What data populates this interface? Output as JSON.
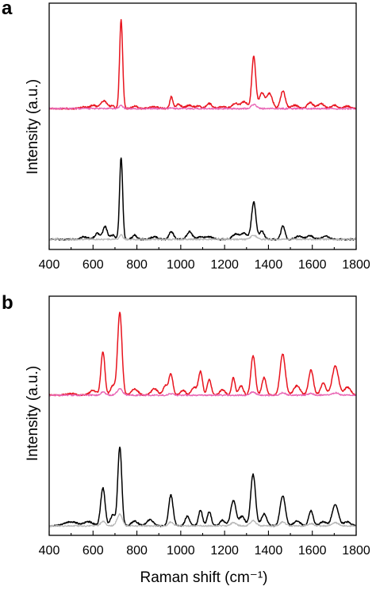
{
  "figure": {
    "panels": [
      {
        "label": "a",
        "ylabel": "Intensity (a.u.)"
      },
      {
        "label": "b",
        "ylabel": "Intensity (a.u.)"
      }
    ],
    "xlabel": "Raman shift (cm⁻¹)",
    "colors": {
      "red": "#e8141e",
      "pink": "#e864b4",
      "black": "#000000",
      "gray": "#b8b8b8"
    }
  },
  "chart_data": [
    {
      "type": "line",
      "panel": "a",
      "xlabel": "",
      "ylabel": "Intensity (a.u.)",
      "xlim": [
        400,
        1800
      ],
      "xticks": [
        400,
        600,
        800,
        1000,
        1200,
        1400,
        1600,
        1800
      ],
      "yticks": [],
      "y_unit": "a.u. (unlabeled, stacked traces)",
      "series": [
        {
          "color": "#e8141e",
          "baseline": 1.55,
          "peaks": [
            [
              560,
              0.02,
              15
            ],
            [
              600,
              0.04,
              12
            ],
            [
              650,
              0.09,
              16
            ],
            [
              690,
              0.03,
              8
            ],
            [
              728,
              1.05,
              7
            ],
            [
              790,
              0.03,
              12
            ],
            [
              880,
              0.02,
              20
            ],
            [
              957,
              0.14,
              7
            ],
            [
              990,
              0.05,
              12
            ],
            [
              1040,
              0.04,
              15
            ],
            [
              1080,
              0.03,
              12
            ],
            [
              1130,
              0.06,
              12
            ],
            [
              1190,
              0.02,
              20
            ],
            [
              1250,
              0.06,
              15
            ],
            [
              1290,
              0.08,
              14
            ],
            [
              1333,
              0.62,
              9
            ],
            [
              1370,
              0.18,
              12
            ],
            [
              1405,
              0.18,
              13
            ],
            [
              1466,
              0.21,
              11
            ],
            [
              1520,
              0.04,
              15
            ],
            [
              1590,
              0.07,
              14
            ],
            [
              1640,
              0.06,
              14
            ],
            [
              1700,
              0.04,
              15
            ],
            [
              1760,
              0.03,
              15
            ]
          ]
        },
        {
          "color": "#e864b4",
          "baseline": 1.55,
          "peaks": [
            [
              728,
              0.04,
              8
            ],
            [
              957,
              0.01,
              8
            ],
            [
              1333,
              0.05,
              12
            ]
          ]
        },
        {
          "color": "#000000",
          "baseline": 0.0,
          "peaks": [
            [
              560,
              0.03,
              15
            ],
            [
              620,
              0.07,
              12
            ],
            [
              655,
              0.15,
              10
            ],
            [
              690,
              0.05,
              10
            ],
            [
              728,
              0.97,
              7
            ],
            [
              790,
              0.05,
              10
            ],
            [
              880,
              0.03,
              15
            ],
            [
              957,
              0.09,
              10
            ],
            [
              1040,
              0.09,
              12
            ],
            [
              1090,
              0.03,
              15
            ],
            [
              1130,
              0.03,
              15
            ],
            [
              1250,
              0.06,
              15
            ],
            [
              1290,
              0.07,
              15
            ],
            [
              1333,
              0.44,
              10
            ],
            [
              1370,
              0.1,
              10
            ],
            [
              1466,
              0.16,
              9
            ],
            [
              1540,
              0.04,
              15
            ],
            [
              1590,
              0.04,
              15
            ],
            [
              1660,
              0.04,
              15
            ]
          ]
        },
        {
          "color": "#b8b8b8",
          "baseline": 0.0,
          "peaks": [
            [
              728,
              0.05,
              8
            ],
            [
              1333,
              0.05,
              12
            ]
          ]
        }
      ]
    },
    {
      "type": "line",
      "panel": "b",
      "xlabel": "Raman shift (cm⁻¹)",
      "ylabel": "Intensity (a.u.)",
      "xlim": [
        400,
        1800
      ],
      "xticks": [
        400,
        600,
        800,
        1000,
        1200,
        1400,
        1600,
        1800
      ],
      "yticks": [],
      "y_unit": "a.u. (unlabeled, stacked traces)",
      "series": [
        {
          "color": "#e8141e",
          "baseline": 1.65,
          "peaks": [
            [
              500,
              0.02,
              20
            ],
            [
              600,
              0.06,
              15
            ],
            [
              645,
              0.55,
              9
            ],
            [
              690,
              0.12,
              10
            ],
            [
              722,
              1.05,
              10
            ],
            [
              790,
              0.08,
              15
            ],
            [
              880,
              0.08,
              15
            ],
            [
              930,
              0.12,
              10
            ],
            [
              955,
              0.27,
              9
            ],
            [
              1010,
              0.06,
              12
            ],
            [
              1060,
              0.1,
              12
            ],
            [
              1090,
              0.3,
              9
            ],
            [
              1130,
              0.2,
              9
            ],
            [
              1190,
              0.07,
              12
            ],
            [
              1240,
              0.22,
              8
            ],
            [
              1275,
              0.12,
              10
            ],
            [
              1330,
              0.5,
              10
            ],
            [
              1380,
              0.22,
              10
            ],
            [
              1465,
              0.52,
              12
            ],
            [
              1530,
              0.12,
              15
            ],
            [
              1594,
              0.32,
              11
            ],
            [
              1650,
              0.15,
              12
            ],
            [
              1705,
              0.37,
              14
            ],
            [
              1760,
              0.1,
              15
            ]
          ]
        },
        {
          "color": "#e864b4",
          "baseline": 1.65,
          "peaks": [
            [
              645,
              0.04,
              10
            ],
            [
              722,
              0.08,
              12
            ],
            [
              955,
              0.02,
              10
            ],
            [
              1330,
              0.04,
              12
            ],
            [
              1465,
              0.03,
              12
            ],
            [
              1594,
              0.02,
              12
            ],
            [
              1705,
              0.03,
              15
            ]
          ]
        },
        {
          "color": "#000000",
          "baseline": 0.0,
          "peaks": [
            [
              500,
              0.05,
              30
            ],
            [
              580,
              0.05,
              20
            ],
            [
              645,
              0.48,
              10
            ],
            [
              690,
              0.14,
              10
            ],
            [
              722,
              1.0,
              9
            ],
            [
              790,
              0.06,
              15
            ],
            [
              860,
              0.08,
              15
            ],
            [
              955,
              0.39,
              10
            ],
            [
              1030,
              0.12,
              10
            ],
            [
              1090,
              0.2,
              9
            ],
            [
              1130,
              0.18,
              9
            ],
            [
              1190,
              0.07,
              12
            ],
            [
              1240,
              0.32,
              12
            ],
            [
              1280,
              0.12,
              12
            ],
            [
              1330,
              0.65,
              11
            ],
            [
              1380,
              0.15,
              12
            ],
            [
              1465,
              0.38,
              12
            ],
            [
              1530,
              0.06,
              15
            ],
            [
              1594,
              0.19,
              10
            ],
            [
              1650,
              0.05,
              15
            ],
            [
              1705,
              0.27,
              14
            ],
            [
              1760,
              0.05,
              15
            ]
          ]
        },
        {
          "color": "#b8b8b8",
          "baseline": 0.0,
          "peaks": [
            [
              645,
              0.06,
              10
            ],
            [
              722,
              0.15,
              12
            ],
            [
              955,
              0.05,
              10
            ],
            [
              1240,
              0.04,
              12
            ],
            [
              1330,
              0.07,
              12
            ],
            [
              1465,
              0.05,
              12
            ],
            [
              1594,
              0.03,
              12
            ],
            [
              1705,
              0.04,
              15
            ]
          ]
        }
      ]
    }
  ]
}
